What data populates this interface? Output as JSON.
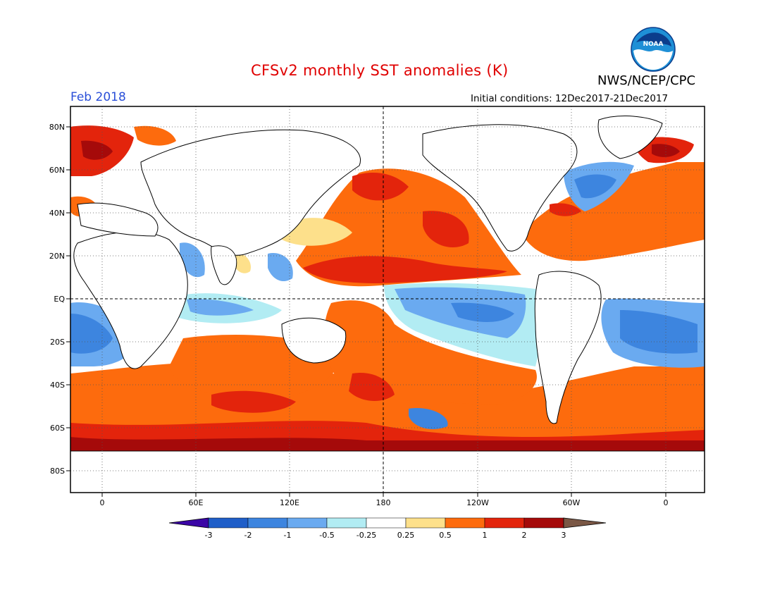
{
  "title": "CFSv2 monthly SST anomalies (K)",
  "agency": "NWS/NCEP/CPC",
  "logo_text": "NOAA",
  "month_label": "Feb 2018",
  "initial_conditions": "Initial conditions: 12Dec2017-21Dec2017",
  "lat_labels": [
    "80N",
    "60N",
    "40N",
    "20N",
    "EQ",
    "20S",
    "40S",
    "60S",
    "80S"
  ],
  "lon_labels": [
    "0",
    "60E",
    "120E",
    "180",
    "120W",
    "60W",
    "0"
  ],
  "colorbar": {
    "labels": [
      "-3",
      "-2",
      "-1",
      "-0.5",
      "-0.25",
      "0.25",
      "0.5",
      "1",
      "2",
      "3"
    ],
    "colors": [
      "#3b06a6",
      "#1f5ec8",
      "#3d85df",
      "#6aaaf0",
      "#b2ecf3",
      "#ffffff",
      "#fde08b",
      "#fd6b0d",
      "#e3240c",
      "#a50a0a",
      "#7a5745"
    ]
  }
}
